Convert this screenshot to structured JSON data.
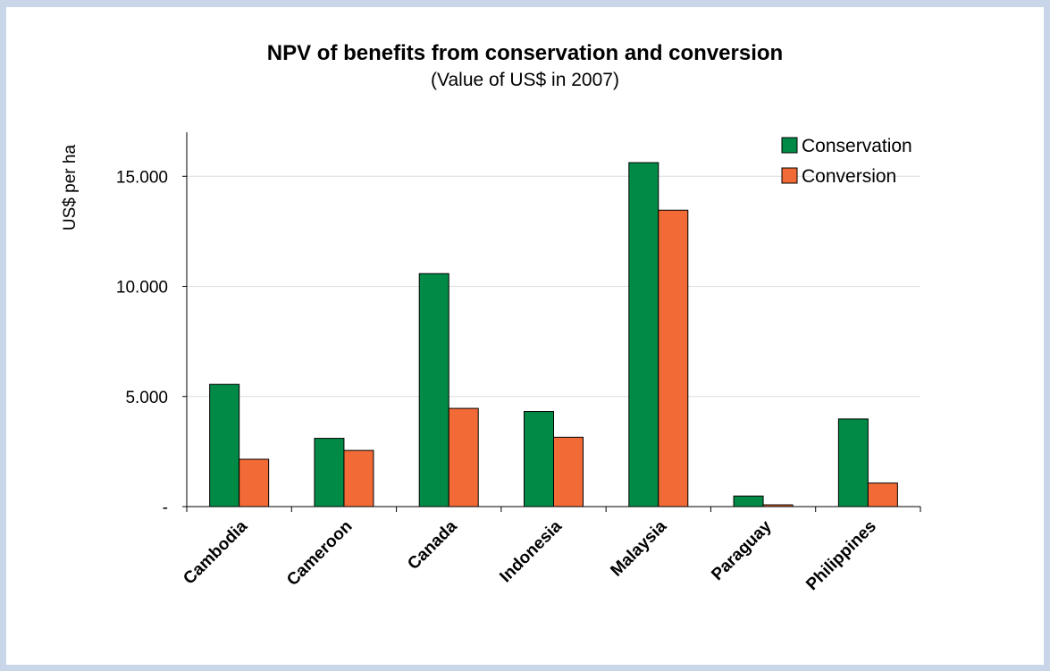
{
  "chart_data": {
    "type": "bar",
    "title": "NPV of benefits from conservation and conversion",
    "subtitle": "(Value of US$ in 2007)",
    "ylabel": "US$ per ha",
    "xlabel": "",
    "ylim": [
      0,
      17000
    ],
    "yticks": [
      0,
      5000,
      10000,
      15000
    ],
    "ytick_labels": [
      "-",
      "5.000",
      "10.000",
      "15.000"
    ],
    "grid": true,
    "legend_position": "top-right",
    "categories": [
      "Cambodia",
      "Cameroon",
      "Canada",
      "Indonesia",
      "Malaysia",
      "Paraguay",
      "Philippines"
    ],
    "series": [
      {
        "name": "Conservation",
        "color": "#008a45",
        "values": [
          5550,
          3100,
          10580,
          4320,
          15620,
          480,
          3980
        ]
      },
      {
        "name": "Conversion",
        "color": "#f26a35",
        "values": [
          2150,
          2550,
          4460,
          3150,
          13460,
          80,
          1070
        ]
      }
    ]
  }
}
